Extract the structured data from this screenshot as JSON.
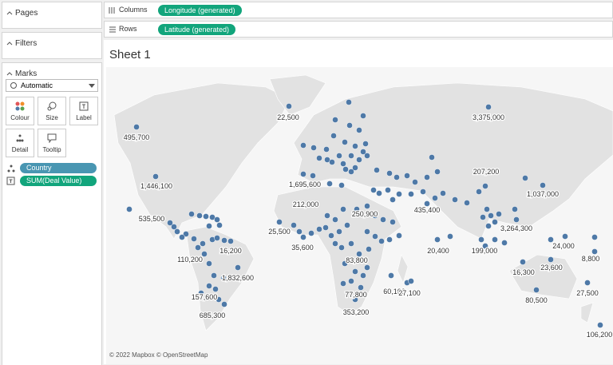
{
  "panels": {
    "pages": "Pages",
    "filters": "Filters",
    "marks": "Marks",
    "mark_type": "Automatic",
    "buttons": [
      "Colour",
      "Size",
      "Label",
      "Detail",
      "Tooltip"
    ],
    "fields": [
      "Country",
      "SUM(Deal Value)"
    ]
  },
  "shelves": {
    "columns_label": "Columns",
    "columns_pill": "Longitude (generated)",
    "rows_label": "Rows",
    "rows_pill": "Latitude (generated)"
  },
  "sheet": {
    "title": "Sheet 1",
    "labels": [
      "22,500",
      "3,375,000",
      "495,700",
      "207,200",
      "1,446,100",
      "1,695,600",
      "1,037,000",
      "212,000",
      "435,400",
      "535,500",
      "250,900",
      "3,264,300",
      "25,500",
      "24,000",
      "35,600",
      "20,400",
      "199,000",
      "16,200",
      "8,800",
      "110,200",
      "83,800",
      "23,600",
      "16,300",
      "1,832,600",
      "60,100",
      "27,100",
      "77,800",
      "157,600",
      "27,500",
      "80,500",
      "685,300",
      "353,200",
      "106,200"
    ],
    "attribution": "© 2022 Mapbox © OpenStreetMap"
  }
}
